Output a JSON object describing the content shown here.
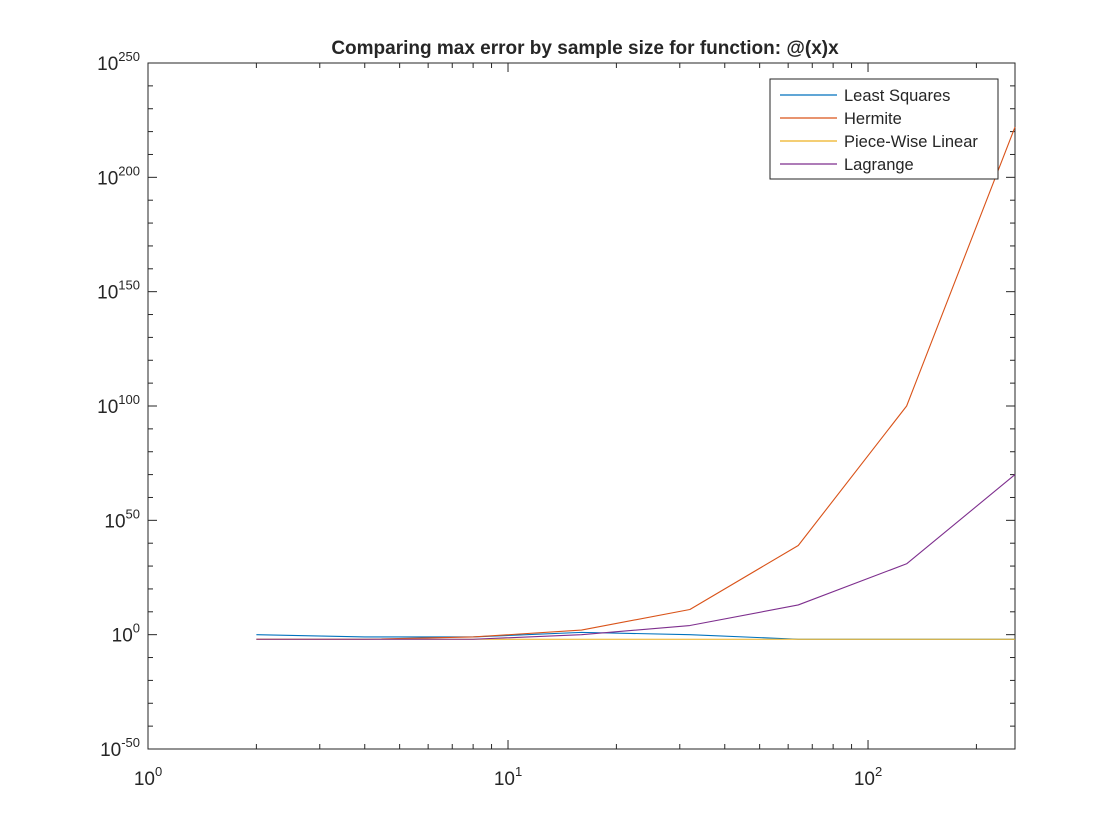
{
  "chart_data": {
    "type": "line",
    "title": "Comparing max error by sample size for function: @(x)x",
    "xlabel": "",
    "ylabel": "",
    "xscale": "log",
    "yscale": "log",
    "xlim": [
      1,
      256
    ],
    "ylim_exponent": [
      -50,
      250
    ],
    "grid": false,
    "legend_position": "top-right",
    "x_ticks": [
      {
        "base": "10",
        "exp": "0",
        "value": 1
      },
      {
        "base": "10",
        "exp": "1",
        "value": 10
      },
      {
        "base": "10",
        "exp": "2",
        "value": 100
      }
    ],
    "y_ticks": [
      {
        "base": "10",
        "exp": "-50",
        "value": -50
      },
      {
        "base": "10",
        "exp": "0",
        "value": 0
      },
      {
        "base": "10",
        "exp": "50",
        "value": 50
      },
      {
        "base": "10",
        "exp": "100",
        "value": 100
      },
      {
        "base": "10",
        "exp": "150",
        "value": 150
      },
      {
        "base": "10",
        "exp": "200",
        "value": 200
      },
      {
        "base": "10",
        "exp": "250",
        "value": 250
      }
    ],
    "x": [
      2,
      4,
      8,
      16,
      32,
      64,
      128,
      256
    ],
    "series": [
      {
        "name": "Least Squares",
        "color": "#0072BD",
        "log10_values": [
          0,
          -1,
          -1,
          1,
          0,
          -2,
          -2,
          -2
        ]
      },
      {
        "name": "Hermite",
        "color": "#D95319",
        "log10_values": [
          -2,
          -2,
          -1,
          2,
          11,
          39,
          100,
          222
        ]
      },
      {
        "name": "Piece-Wise Linear",
        "color": "#EDB120",
        "log10_values": [
          -2,
          -2,
          -2,
          -2,
          -2,
          -2,
          -2,
          -2
        ]
      },
      {
        "name": "Lagrange",
        "color": "#7E2F8E",
        "log10_values": [
          -2,
          -2,
          -2,
          0,
          4,
          13,
          31,
          70
        ]
      }
    ]
  }
}
